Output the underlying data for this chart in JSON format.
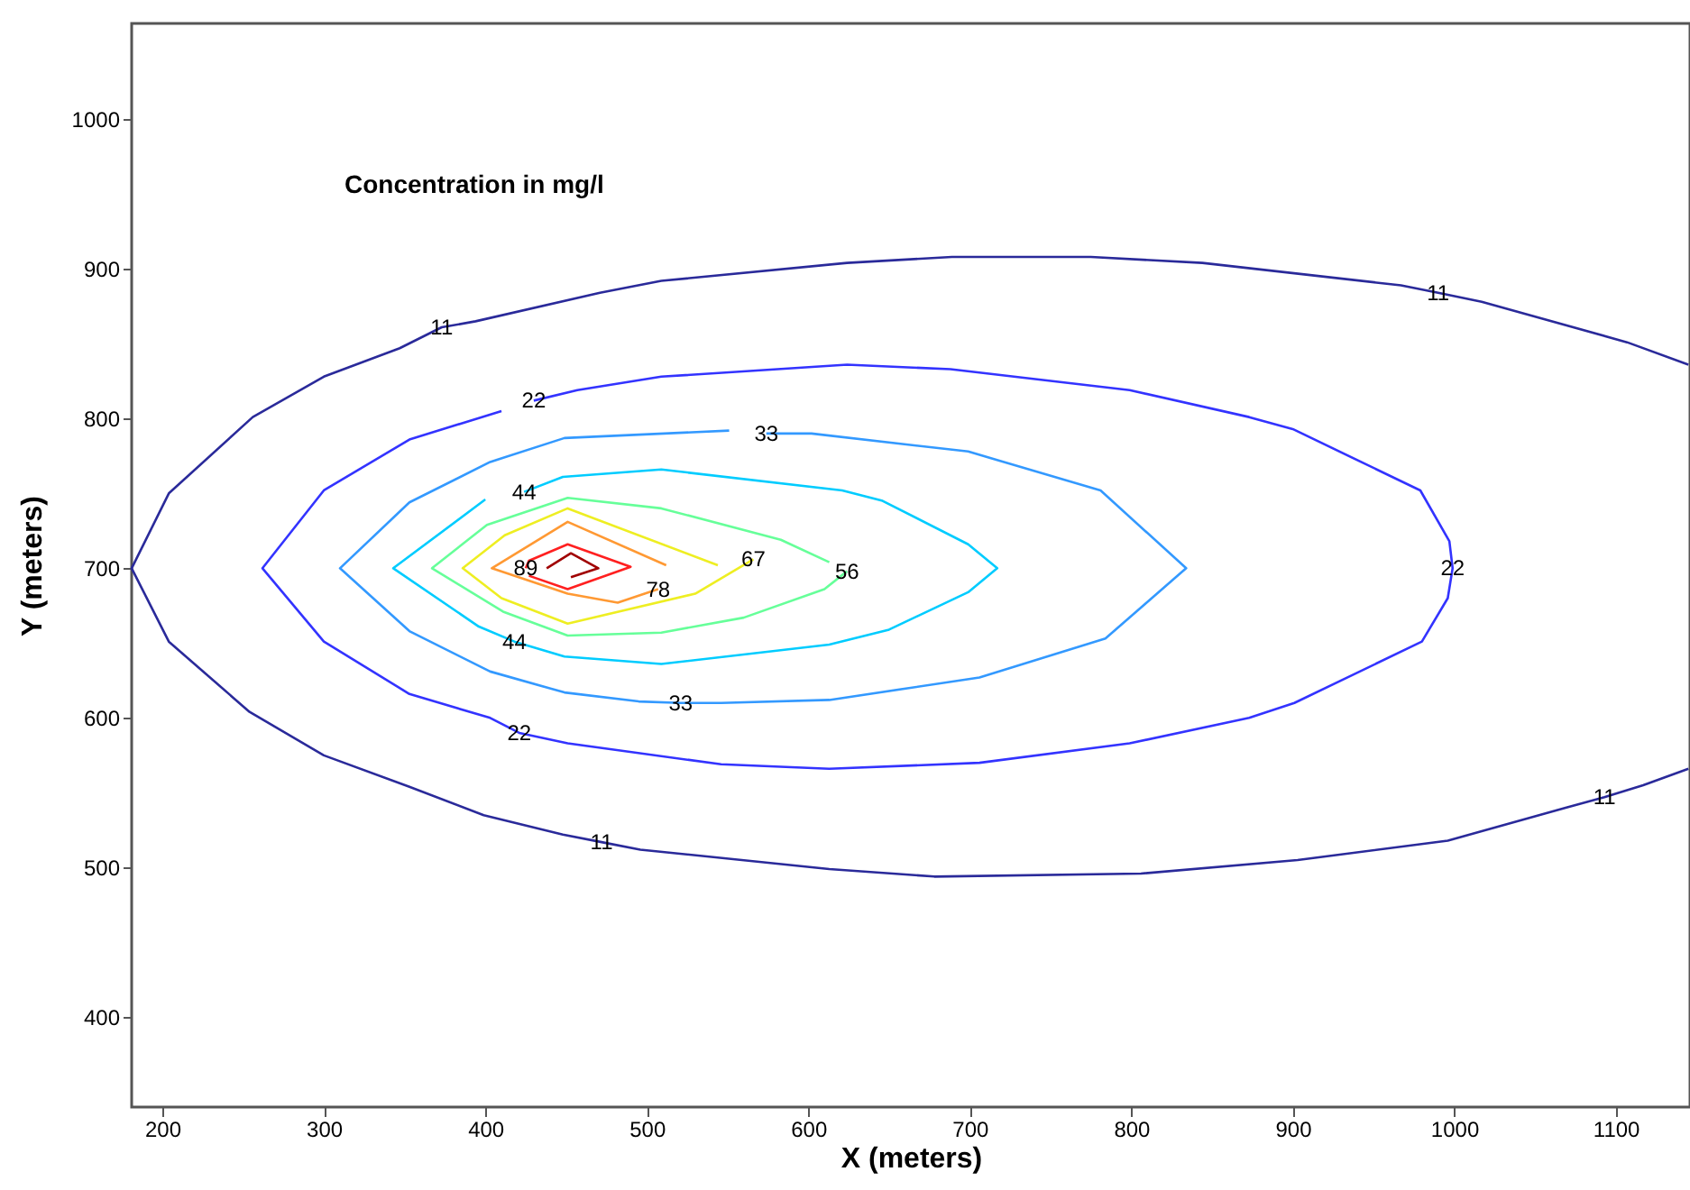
{
  "chart_data": {
    "type": "line",
    "title": "Concentration in mg/l",
    "xlabel": "X (meters)",
    "ylabel": "Y (meters)",
    "xlim": [
      181,
      1146
    ],
    "ylim": [
      340,
      1064
    ],
    "xticks": [
      200,
      300,
      400,
      500,
      600,
      700,
      800,
      900,
      1000,
      1100
    ],
    "yticks": [
      400,
      500,
      600,
      700,
      800,
      900,
      1000
    ],
    "grid": false,
    "marker": "none",
    "line_style": "solid",
    "series": [
      {
        "color": "#2a2a9a",
        "x": [
          1145,
          1107,
          1017,
          990,
          967,
          844,
          775,
          689,
          624,
          509,
          471,
          394,
          373,
          347,
          300,
          256,
          204,
          181,
          204,
          254,
          300,
          353,
          399,
          448,
          472,
          496,
          613,
          678,
          806,
          903,
          996,
          1069,
          1093,
          1117,
          1145
        ],
        "values": [
          836,
          851,
          878,
          884,
          889,
          904,
          908,
          908,
          904,
          892,
          884,
          865,
          861,
          847,
          828,
          801,
          750,
          700,
          651,
          604,
          575,
          554,
          535,
          522,
          517,
          512,
          499,
          494,
          496,
          505,
          518,
          540,
          547,
          555,
          566
        ]
      },
      {
        "color": "#3333ff",
        "x": [
          430,
          457,
          509,
          624,
          688,
          799,
          873,
          900,
          979,
          997,
          999,
          996,
          980,
          901,
          873,
          799,
          706,
          613,
          546,
          451,
          421,
          403,
          353,
          300,
          262,
          300,
          353,
          410
        ],
        "values": [
          812,
          819,
          828,
          836,
          833,
          819,
          801,
          793,
          752,
          718,
          700,
          680,
          651,
          610,
          600,
          583,
          570,
          566,
          569,
          583,
          590,
          600,
          616,
          651,
          700,
          752,
          786,
          805
        ]
      },
      {
        "color": "#3399ff",
        "x": [
          574,
          602,
          699,
          781,
          834,
          784,
          706,
          613,
          546,
          521,
          495,
          449,
          403,
          353,
          310,
          353,
          403,
          449,
          551
        ],
        "values": [
          790,
          790,
          778,
          752,
          700,
          653,
          627,
          612,
          610,
          610,
          611,
          617,
          631,
          658,
          700,
          744,
          771,
          787,
          792
        ]
      },
      {
        "color": "#00ccff",
        "x": [
          424,
          448,
          509,
          621,
          646,
          699,
          717,
          699,
          650,
          613,
          509,
          449,
          418,
          396,
          343,
          400
        ],
        "values": [
          751,
          761,
          766,
          752,
          745,
          716,
          700,
          684,
          659,
          649,
          636,
          641,
          651,
          661,
          700,
          746
        ]
      },
      {
        "color": "#66ff99",
        "x": [
          624,
          610,
          560,
          509,
          451,
          411,
          367,
          401,
          451,
          509,
          583,
          613
        ],
        "values": [
          698,
          686,
          667,
          657,
          655,
          671,
          700,
          729,
          747,
          740,
          719,
          704
        ]
      },
      {
        "color": "#eeee22",
        "x": [
          566,
          530,
          451,
          410,
          386,
          412,
          451,
          544
        ],
        "values": [
          706,
          683,
          663,
          680,
          700,
          722,
          740,
          702
        ]
      },
      {
        "color": "#ff9933",
        "x": [
          507,
          482,
          451,
          404,
          451,
          512
        ],
        "values": [
          686,
          677,
          683,
          700,
          731,
          702
        ]
      },
      {
        "color": "#ff2020",
        "x": [
          425,
          427,
          451,
          490,
          451,
          427
        ],
        "values": [
          700,
          705,
          716,
          701,
          686,
          695
        ]
      },
      {
        "color": "#a00000",
        "x": [
          438,
          453,
          470,
          453
        ],
        "values": [
          700,
          710,
          700,
          694
        ]
      }
    ],
    "annotations": [
      {
        "text": "11",
        "x": 373,
        "y": 861
      },
      {
        "text": "11",
        "x": 990,
        "y": 884
      },
      {
        "text": "11",
        "x": 472,
        "y": 517
      },
      {
        "text": "11",
        "x": 1093,
        "y": 547
      },
      {
        "text": "22",
        "x": 430,
        "y": 812
      },
      {
        "text": "22",
        "x": 999,
        "y": 700
      },
      {
        "text": "22",
        "x": 421,
        "y": 590
      },
      {
        "text": "33",
        "x": 574,
        "y": 790
      },
      {
        "text": "33",
        "x": 521,
        "y": 610
      },
      {
        "text": "44",
        "x": 424,
        "y": 751
      },
      {
        "text": "44",
        "x": 418,
        "y": 651
      },
      {
        "text": "56",
        "x": 624,
        "y": 698
      },
      {
        "text": "67",
        "x": 566,
        "y": 706
      },
      {
        "text": "78",
        "x": 507,
        "y": 686
      },
      {
        "text": "89",
        "x": 425,
        "y": 700
      }
    ]
  }
}
